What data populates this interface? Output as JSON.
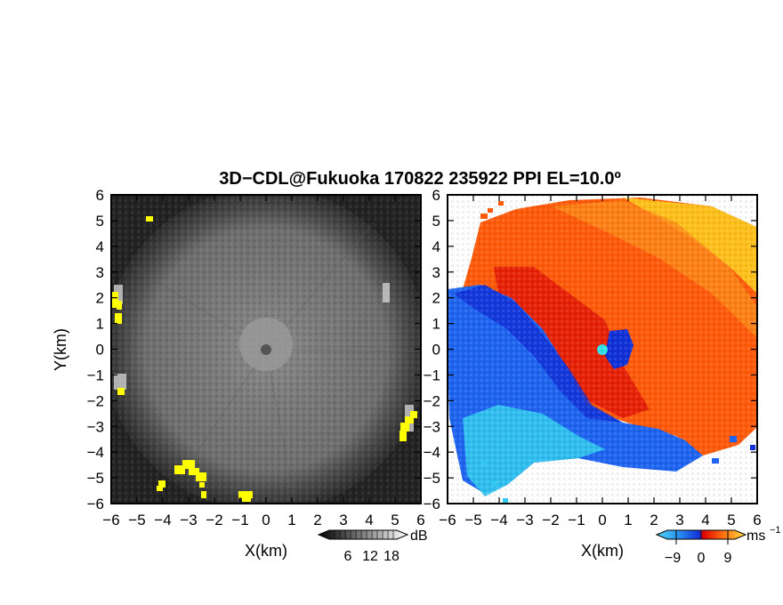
{
  "chart_data": [
    {
      "type": "heatmap",
      "title": "3D−CDL@Fukuoka 170822 235922 PPI EL=10.0º",
      "xlabel": "X(km)",
      "ylabel": "Y(km)",
      "xlim": [
        -6,
        6
      ],
      "ylim": [
        -6,
        6
      ],
      "x_ticks": [
        "−6",
        "−5",
        "−4",
        "−3",
        "−2",
        "−1",
        "0",
        "1",
        "2",
        "3",
        "4",
        "5",
        "6"
      ],
      "y_ticks": [
        "6",
        "5",
        "4",
        "3",
        "2",
        "1",
        "0",
        "−1",
        "−2",
        "−3",
        "−4",
        "−5",
        "−6"
      ],
      "colorbar": {
        "unit": "dB",
        "ticks": [
          "6",
          "12",
          "18"
        ],
        "range": [
          0,
          24
        ],
        "colormap": "grayscale"
      },
      "colors": {
        "clutter": "#ffff00"
      },
      "features": [
        "gray echo disk centered at radar",
        "yellow clutter patches near west, south-west and south-east edges"
      ]
    },
    {
      "type": "heatmap",
      "xlabel": "X(km)",
      "xlim": [
        -6,
        6
      ],
      "ylim": [
        -6,
        6
      ],
      "x_ticks": [
        "−6",
        "−5",
        "−4",
        "−3",
        "−2",
        "−1",
        "0",
        "1",
        "2",
        "3",
        "4",
        "5",
        "6"
      ],
      "y_ticks": [
        "6",
        "5",
        "4",
        "3",
        "2",
        "1",
        "0",
        "−1",
        "−2",
        "−3",
        "−4",
        "−5",
        "−6"
      ],
      "colorbar": {
        "unit": "ms",
        "unit_exponent": "−1",
        "ticks": [
          "−9",
          "0",
          "9"
        ],
        "range": [
          -12,
          12
        ],
        "colormap": "cyan-blue-red-yellow"
      },
      "colors": {
        "positive": "#ff5a0a",
        "negative": "#1e64f0",
        "strong_positive": "#ffd21e",
        "strong_negative": "#32c8f0"
      },
      "features": [
        "receding (orange) velocities to the north and east",
        "approaching (blue) velocities to the south-west"
      ]
    }
  ]
}
